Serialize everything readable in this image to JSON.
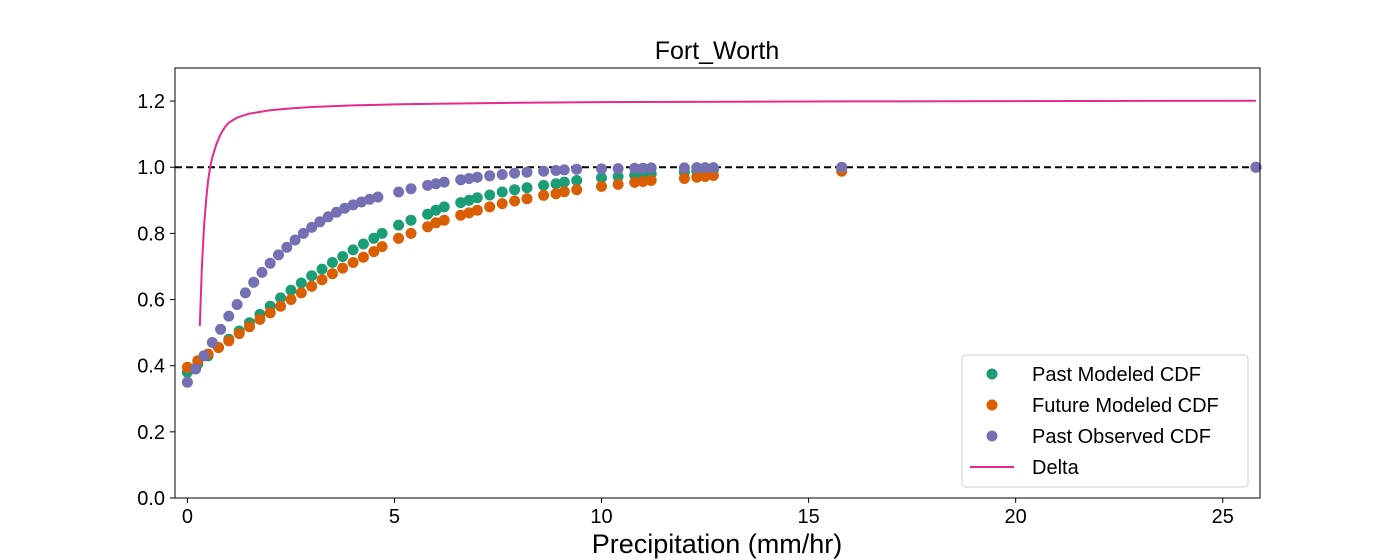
{
  "chart_data": {
    "type": "scatter",
    "title": "Fort_Worth",
    "xlabel": "Precipitation (mm/hr)",
    "ylabel": "",
    "xlim": [
      -0.3,
      25.9
    ],
    "ylim": [
      0.0,
      1.3
    ],
    "xticks": [
      0,
      5,
      10,
      15,
      20,
      25
    ],
    "yticks": [
      0.0,
      0.2,
      0.4,
      0.6,
      0.8,
      1.0,
      1.2
    ],
    "xtick_labels": [
      "0",
      "5",
      "10",
      "15",
      "20",
      "25"
    ],
    "ytick_labels": [
      "0.0",
      "0.2",
      "0.4",
      "0.6",
      "0.8",
      "1.0",
      "1.2"
    ],
    "grid": false,
    "legend_position": "lower-right",
    "reference_line": {
      "y": 1.0,
      "style": "dashed",
      "color": "#000000"
    },
    "series": [
      {
        "name": "Past Modeled CDF",
        "kind": "scatter",
        "color": "#1b9e77",
        "x": [
          0.0,
          0.25,
          0.5,
          0.75,
          1.0,
          1.25,
          1.5,
          1.75,
          2.0,
          2.25,
          2.5,
          2.75,
          3.0,
          3.25,
          3.5,
          3.75,
          4.0,
          4.25,
          4.5,
          4.7,
          5.1,
          5.4,
          5.8,
          6.0,
          6.2,
          6.6,
          6.8,
          7.0,
          7.3,
          7.6,
          7.9,
          8.2,
          8.6,
          8.9,
          9.1,
          9.4,
          10.0,
          10.4,
          10.8,
          11.0,
          11.2,
          12.0,
          12.3,
          12.5,
          12.7,
          15.8,
          25.8
        ],
        "y": [
          0.38,
          0.405,
          0.43,
          0.455,
          0.48,
          0.505,
          0.53,
          0.555,
          0.58,
          0.605,
          0.628,
          0.65,
          0.672,
          0.692,
          0.712,
          0.73,
          0.75,
          0.768,
          0.785,
          0.8,
          0.825,
          0.84,
          0.858,
          0.87,
          0.88,
          0.893,
          0.9,
          0.908,
          0.916,
          0.925,
          0.932,
          0.938,
          0.945,
          0.95,
          0.955,
          0.96,
          0.968,
          0.972,
          0.976,
          0.978,
          0.98,
          0.985,
          0.988,
          0.99,
          0.992,
          0.996,
          1.0
        ]
      },
      {
        "name": "Future Modeled CDF",
        "kind": "scatter",
        "color": "#d95f02",
        "x": [
          0.0,
          0.25,
          0.5,
          0.75,
          1.0,
          1.25,
          1.5,
          1.75,
          2.0,
          2.25,
          2.5,
          2.75,
          3.0,
          3.25,
          3.5,
          3.75,
          4.0,
          4.25,
          4.5,
          4.7,
          5.1,
          5.4,
          5.8,
          6.0,
          6.2,
          6.6,
          6.8,
          7.0,
          7.3,
          7.6,
          7.9,
          8.2,
          8.6,
          8.9,
          9.1,
          9.4,
          10.0,
          10.4,
          10.8,
          11.0,
          11.2,
          12.0,
          12.3,
          12.5,
          12.7,
          15.8,
          25.8
        ],
        "y": [
          0.395,
          0.415,
          0.435,
          0.455,
          0.475,
          0.497,
          0.518,
          0.54,
          0.56,
          0.58,
          0.6,
          0.62,
          0.64,
          0.66,
          0.678,
          0.695,
          0.712,
          0.728,
          0.745,
          0.76,
          0.785,
          0.8,
          0.82,
          0.832,
          0.84,
          0.855,
          0.862,
          0.87,
          0.88,
          0.89,
          0.898,
          0.905,
          0.915,
          0.92,
          0.926,
          0.932,
          0.942,
          0.948,
          0.954,
          0.957,
          0.96,
          0.966,
          0.97,
          0.972,
          0.975,
          0.988,
          1.0
        ]
      },
      {
        "name": "Past Observed CDF",
        "kind": "scatter",
        "color": "#7570b3",
        "x": [
          0.0,
          0.2,
          0.4,
          0.6,
          0.8,
          1.0,
          1.2,
          1.4,
          1.6,
          1.8,
          2.0,
          2.2,
          2.4,
          2.6,
          2.8,
          3.0,
          3.2,
          3.4,
          3.6,
          3.8,
          4.0,
          4.2,
          4.4,
          4.6,
          5.1,
          5.4,
          5.8,
          6.0,
          6.2,
          6.6,
          6.8,
          7.0,
          7.3,
          7.6,
          7.9,
          8.2,
          8.6,
          8.9,
          9.1,
          9.4,
          10.0,
          10.4,
          10.8,
          11.0,
          11.2,
          12.0,
          12.3,
          12.5,
          12.7,
          15.8,
          25.8
        ],
        "y": [
          0.35,
          0.39,
          0.43,
          0.47,
          0.51,
          0.55,
          0.585,
          0.62,
          0.652,
          0.682,
          0.71,
          0.735,
          0.758,
          0.78,
          0.8,
          0.818,
          0.835,
          0.85,
          0.864,
          0.876,
          0.886,
          0.895,
          0.903,
          0.91,
          0.925,
          0.935,
          0.945,
          0.95,
          0.955,
          0.962,
          0.966,
          0.97,
          0.974,
          0.978,
          0.982,
          0.985,
          0.988,
          0.99,
          0.992,
          0.994,
          0.995,
          0.996,
          0.997,
          0.997,
          0.998,
          0.998,
          0.999,
          0.999,
          0.999,
          1.0,
          1.0
        ]
      },
      {
        "name": "Delta",
        "kind": "line",
        "color": "#e7298a",
        "x": [
          0.3,
          0.35,
          0.4,
          0.45,
          0.5,
          0.55,
          0.6,
          0.7,
          0.8,
          0.9,
          1.0,
          1.2,
          1.5,
          2.0,
          2.5,
          3.0,
          4.0,
          5.0,
          6.0,
          8.0,
          10.0,
          13.0,
          16.0,
          20.0,
          25.8
        ],
        "y": [
          0.52,
          0.7,
          0.82,
          0.9,
          0.96,
          1.0,
          1.03,
          1.07,
          1.1,
          1.12,
          1.135,
          1.15,
          1.162,
          1.172,
          1.178,
          1.182,
          1.187,
          1.19,
          1.192,
          1.195,
          1.197,
          1.198,
          1.199,
          1.2,
          1.201
        ]
      }
    ]
  }
}
